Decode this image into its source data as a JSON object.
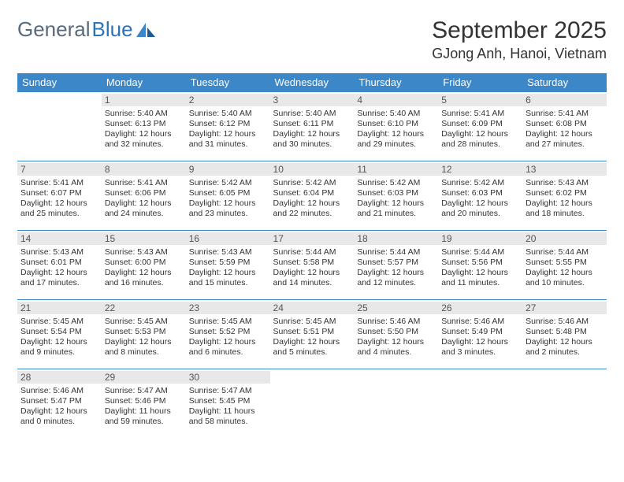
{
  "brand": {
    "part1": "General",
    "part2": "Blue"
  },
  "title": "September 2025",
  "location": "GJong Anh, Hanoi, Vietnam",
  "colors": {
    "header_bg": "#3b87c8",
    "header_text": "#ffffff",
    "day_strip_bg": "#e8e8e8",
    "border": "#3b87c8",
    "text": "#333333",
    "logo_gray": "#5a6a7a",
    "logo_blue": "#2d73b8",
    "background": "#ffffff"
  },
  "typography": {
    "title_fontsize": 30,
    "location_fontsize": 18,
    "header_fontsize": 13,
    "daynum_fontsize": 12,
    "info_fontsize": 10.5
  },
  "day_headers": [
    "Sunday",
    "Monday",
    "Tuesday",
    "Wednesday",
    "Thursday",
    "Friday",
    "Saturday"
  ],
  "weeks": [
    [
      {
        "n": "",
        "sr": "",
        "ss": "",
        "dl": ""
      },
      {
        "n": "1",
        "sr": "Sunrise: 5:40 AM",
        "ss": "Sunset: 6:13 PM",
        "dl": "Daylight: 12 hours and 32 minutes."
      },
      {
        "n": "2",
        "sr": "Sunrise: 5:40 AM",
        "ss": "Sunset: 6:12 PM",
        "dl": "Daylight: 12 hours and 31 minutes."
      },
      {
        "n": "3",
        "sr": "Sunrise: 5:40 AM",
        "ss": "Sunset: 6:11 PM",
        "dl": "Daylight: 12 hours and 30 minutes."
      },
      {
        "n": "4",
        "sr": "Sunrise: 5:40 AM",
        "ss": "Sunset: 6:10 PM",
        "dl": "Daylight: 12 hours and 29 minutes."
      },
      {
        "n": "5",
        "sr": "Sunrise: 5:41 AM",
        "ss": "Sunset: 6:09 PM",
        "dl": "Daylight: 12 hours and 28 minutes."
      },
      {
        "n": "6",
        "sr": "Sunrise: 5:41 AM",
        "ss": "Sunset: 6:08 PM",
        "dl": "Daylight: 12 hours and 27 minutes."
      }
    ],
    [
      {
        "n": "7",
        "sr": "Sunrise: 5:41 AM",
        "ss": "Sunset: 6:07 PM",
        "dl": "Daylight: 12 hours and 25 minutes."
      },
      {
        "n": "8",
        "sr": "Sunrise: 5:41 AM",
        "ss": "Sunset: 6:06 PM",
        "dl": "Daylight: 12 hours and 24 minutes."
      },
      {
        "n": "9",
        "sr": "Sunrise: 5:42 AM",
        "ss": "Sunset: 6:05 PM",
        "dl": "Daylight: 12 hours and 23 minutes."
      },
      {
        "n": "10",
        "sr": "Sunrise: 5:42 AM",
        "ss": "Sunset: 6:04 PM",
        "dl": "Daylight: 12 hours and 22 minutes."
      },
      {
        "n": "11",
        "sr": "Sunrise: 5:42 AM",
        "ss": "Sunset: 6:03 PM",
        "dl": "Daylight: 12 hours and 21 minutes."
      },
      {
        "n": "12",
        "sr": "Sunrise: 5:42 AM",
        "ss": "Sunset: 6:03 PM",
        "dl": "Daylight: 12 hours and 20 minutes."
      },
      {
        "n": "13",
        "sr": "Sunrise: 5:43 AM",
        "ss": "Sunset: 6:02 PM",
        "dl": "Daylight: 12 hours and 18 minutes."
      }
    ],
    [
      {
        "n": "14",
        "sr": "Sunrise: 5:43 AM",
        "ss": "Sunset: 6:01 PM",
        "dl": "Daylight: 12 hours and 17 minutes."
      },
      {
        "n": "15",
        "sr": "Sunrise: 5:43 AM",
        "ss": "Sunset: 6:00 PM",
        "dl": "Daylight: 12 hours and 16 minutes."
      },
      {
        "n": "16",
        "sr": "Sunrise: 5:43 AM",
        "ss": "Sunset: 5:59 PM",
        "dl": "Daylight: 12 hours and 15 minutes."
      },
      {
        "n": "17",
        "sr": "Sunrise: 5:44 AM",
        "ss": "Sunset: 5:58 PM",
        "dl": "Daylight: 12 hours and 14 minutes."
      },
      {
        "n": "18",
        "sr": "Sunrise: 5:44 AM",
        "ss": "Sunset: 5:57 PM",
        "dl": "Daylight: 12 hours and 12 minutes."
      },
      {
        "n": "19",
        "sr": "Sunrise: 5:44 AM",
        "ss": "Sunset: 5:56 PM",
        "dl": "Daylight: 12 hours and 11 minutes."
      },
      {
        "n": "20",
        "sr": "Sunrise: 5:44 AM",
        "ss": "Sunset: 5:55 PM",
        "dl": "Daylight: 12 hours and 10 minutes."
      }
    ],
    [
      {
        "n": "21",
        "sr": "Sunrise: 5:45 AM",
        "ss": "Sunset: 5:54 PM",
        "dl": "Daylight: 12 hours and 9 minutes."
      },
      {
        "n": "22",
        "sr": "Sunrise: 5:45 AM",
        "ss": "Sunset: 5:53 PM",
        "dl": "Daylight: 12 hours and 8 minutes."
      },
      {
        "n": "23",
        "sr": "Sunrise: 5:45 AM",
        "ss": "Sunset: 5:52 PM",
        "dl": "Daylight: 12 hours and 6 minutes."
      },
      {
        "n": "24",
        "sr": "Sunrise: 5:45 AM",
        "ss": "Sunset: 5:51 PM",
        "dl": "Daylight: 12 hours and 5 minutes."
      },
      {
        "n": "25",
        "sr": "Sunrise: 5:46 AM",
        "ss": "Sunset: 5:50 PM",
        "dl": "Daylight: 12 hours and 4 minutes."
      },
      {
        "n": "26",
        "sr": "Sunrise: 5:46 AM",
        "ss": "Sunset: 5:49 PM",
        "dl": "Daylight: 12 hours and 3 minutes."
      },
      {
        "n": "27",
        "sr": "Sunrise: 5:46 AM",
        "ss": "Sunset: 5:48 PM",
        "dl": "Daylight: 12 hours and 2 minutes."
      }
    ],
    [
      {
        "n": "28",
        "sr": "Sunrise: 5:46 AM",
        "ss": "Sunset: 5:47 PM",
        "dl": "Daylight: 12 hours and 0 minutes."
      },
      {
        "n": "29",
        "sr": "Sunrise: 5:47 AM",
        "ss": "Sunset: 5:46 PM",
        "dl": "Daylight: 11 hours and 59 minutes."
      },
      {
        "n": "30",
        "sr": "Sunrise: 5:47 AM",
        "ss": "Sunset: 5:45 PM",
        "dl": "Daylight: 11 hours and 58 minutes."
      },
      {
        "n": "",
        "sr": "",
        "ss": "",
        "dl": ""
      },
      {
        "n": "",
        "sr": "",
        "ss": "",
        "dl": ""
      },
      {
        "n": "",
        "sr": "",
        "ss": "",
        "dl": ""
      },
      {
        "n": "",
        "sr": "",
        "ss": "",
        "dl": ""
      }
    ]
  ]
}
